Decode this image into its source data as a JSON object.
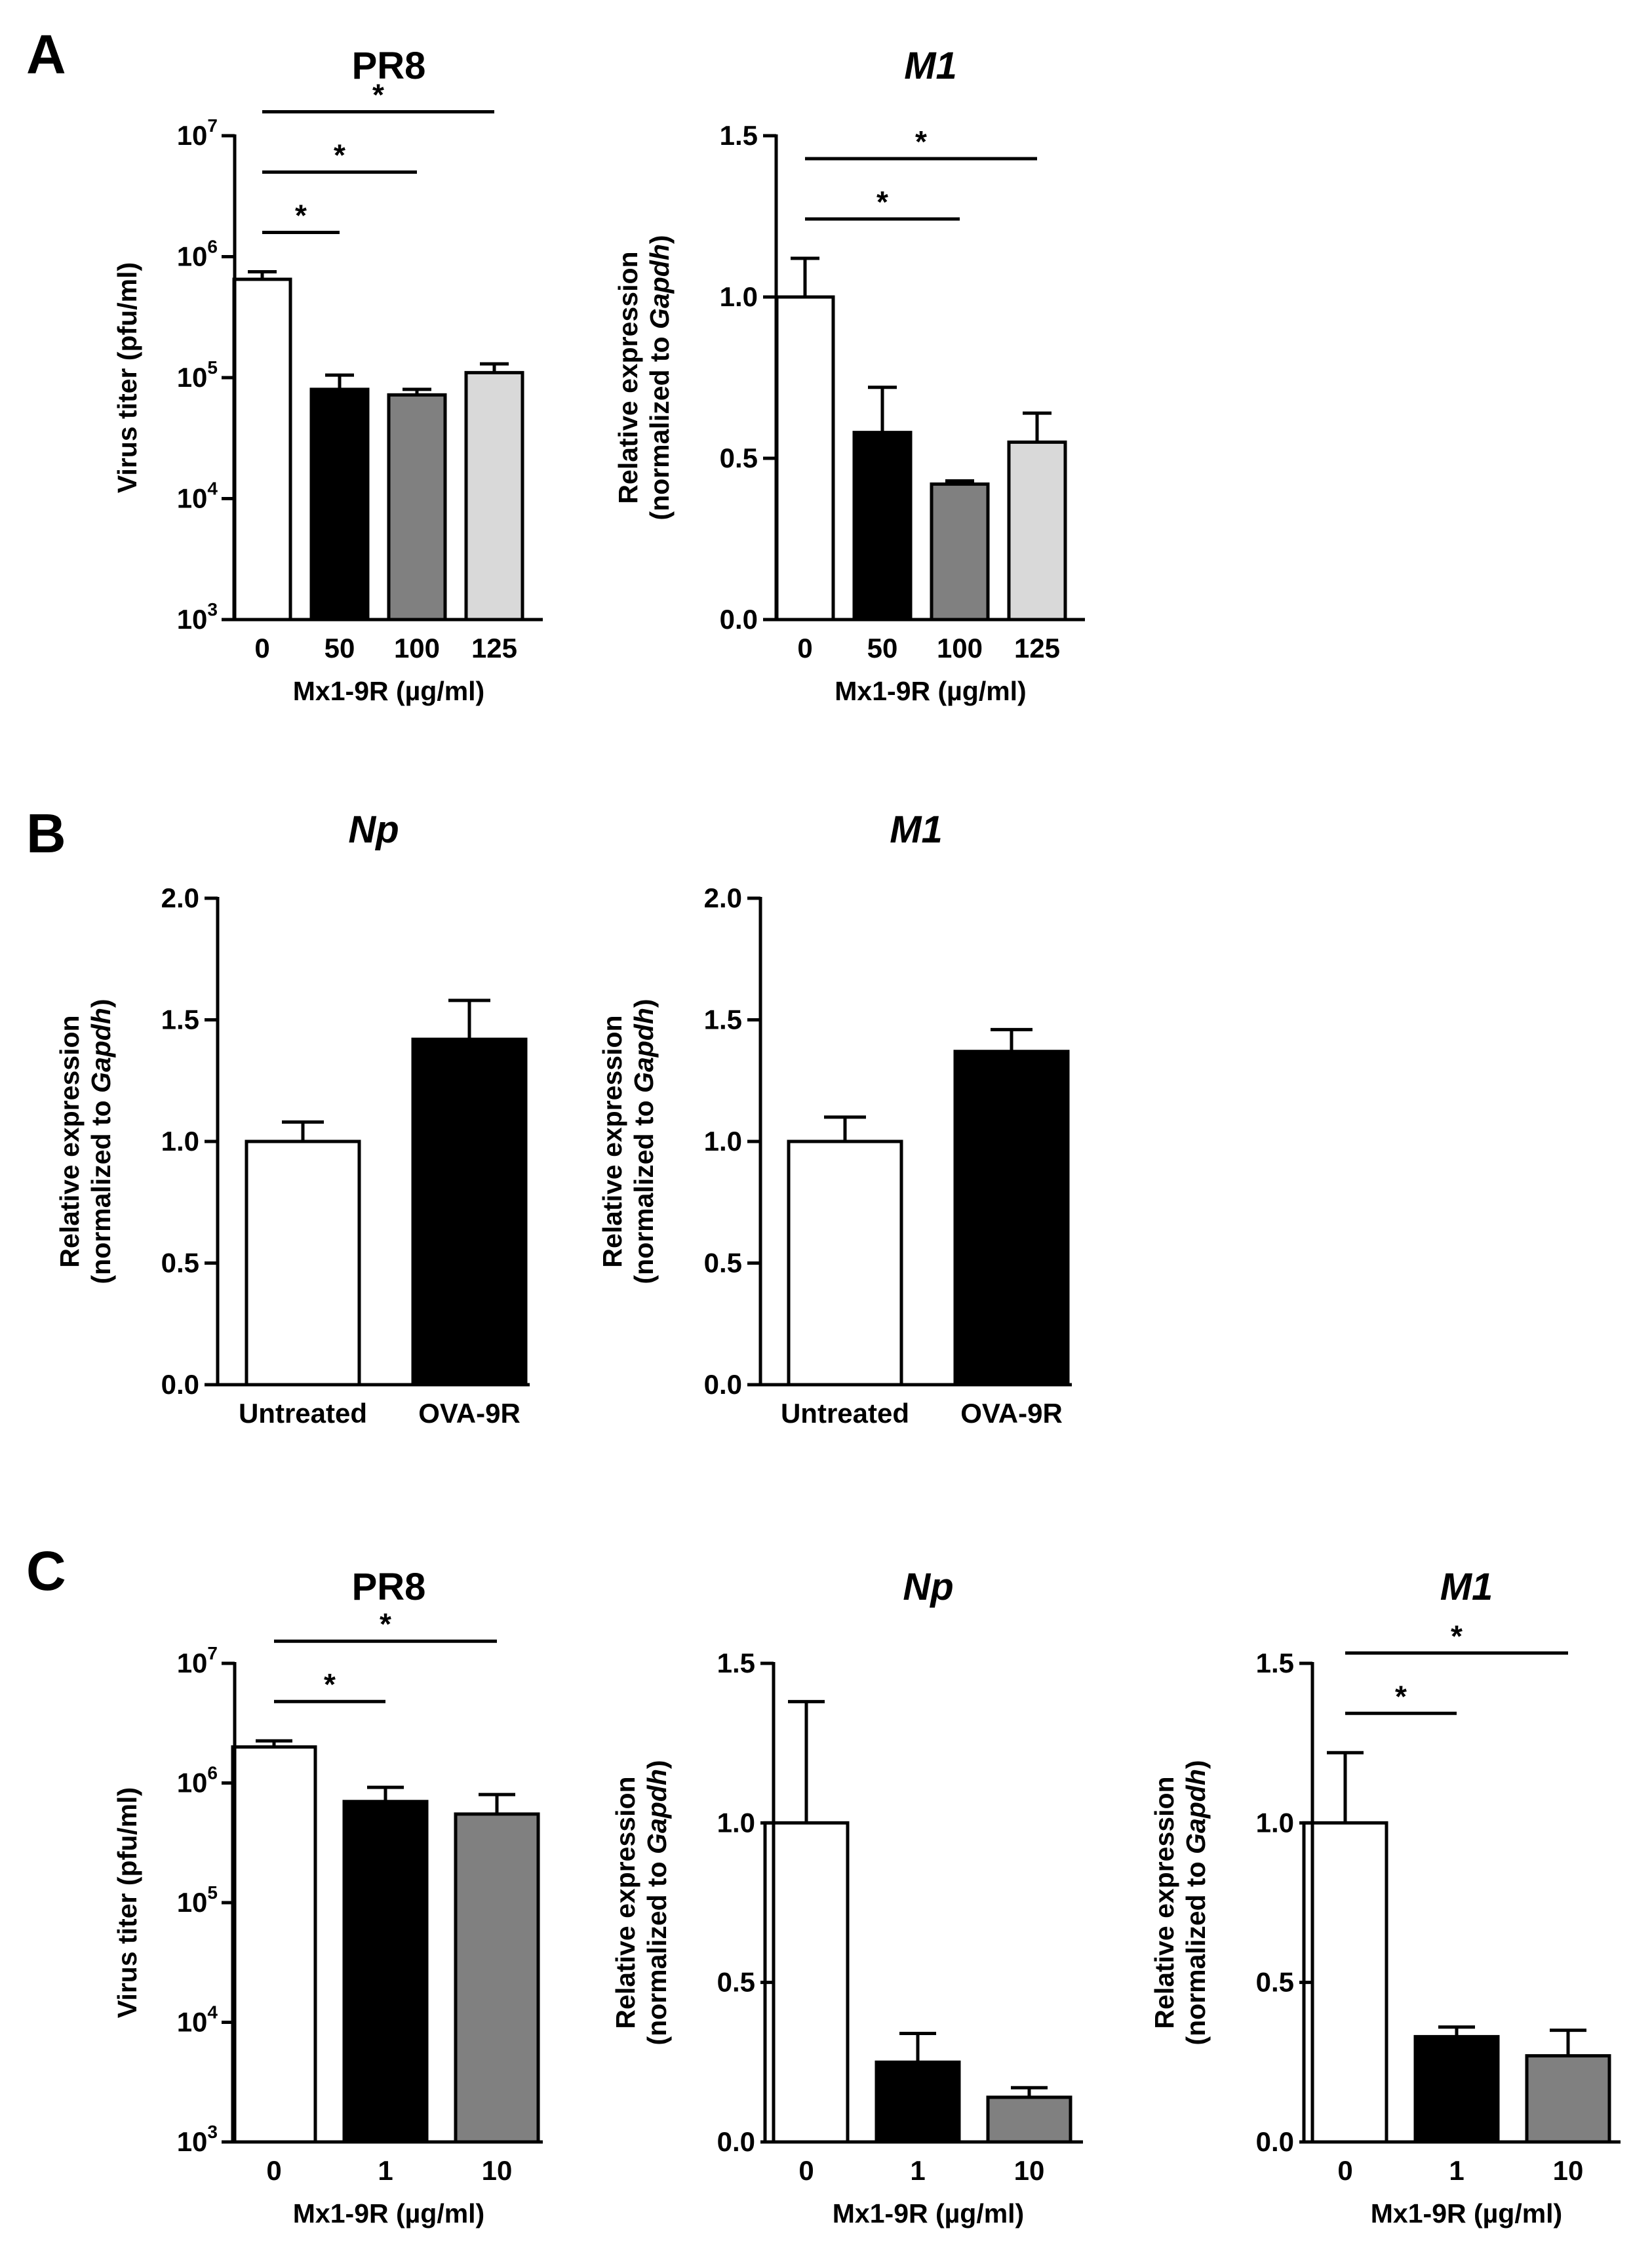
{
  "panels": [
    {
      "letter": "A"
    },
    {
      "letter": "B"
    },
    {
      "letter": "C"
    }
  ],
  "chart_data": [
    {
      "id": "A1",
      "panel": "A",
      "type": "bar",
      "scale": "log",
      "title": "PR8",
      "title_italic": false,
      "categories": [
        "0",
        "50",
        "100",
        "125"
      ],
      "values": [
        650000,
        80000,
        72000,
        110000
      ],
      "errors_upper": [
        750000,
        105000,
        80000,
        130000
      ],
      "bar_colors": [
        "#ffffff",
        "#000000",
        "#808080",
        "#d9d9d9"
      ],
      "xlabel": "Mx1-9R (µg/ml)",
      "ylabel_lines": [
        [
          {
            "t": "Virus titer (pfu/ml)",
            "i": false
          }
        ]
      ],
      "ylim": [
        1000,
        10000000
      ],
      "yticks": [
        {
          "v": 1000,
          "base": "10",
          "exp": "3"
        },
        {
          "v": 10000,
          "base": "10",
          "exp": "4"
        },
        {
          "v": 100000,
          "base": "10",
          "exp": "5"
        },
        {
          "v": 1000000,
          "base": "10",
          "exp": "6"
        },
        {
          "v": 10000000,
          "base": "10",
          "exp": "7"
        }
      ],
      "significance": [
        {
          "from": 0,
          "to": 1,
          "label": "*"
        },
        {
          "from": 0,
          "to": 2,
          "label": "*"
        },
        {
          "from": 0,
          "to": 3,
          "label": "*"
        }
      ]
    },
    {
      "id": "A2",
      "panel": "A",
      "type": "bar",
      "scale": "linear",
      "title": "M1",
      "title_italic": true,
      "categories": [
        "0",
        "50",
        "100",
        "125"
      ],
      "values": [
        1.0,
        0.58,
        0.42,
        0.55
      ],
      "errors_upper": [
        1.12,
        0.72,
        0.43,
        0.64
      ],
      "bar_colors": [
        "#ffffff",
        "#000000",
        "#808080",
        "#d9d9d9"
      ],
      "xlabel": "Mx1-9R (µg/ml)",
      "ylabel_lines": [
        [
          {
            "t": "Relative expression",
            "i": false
          }
        ],
        [
          {
            "t": "(normalized to ",
            "i": false
          },
          {
            "t": "Gapdh",
            "i": true
          },
          {
            "t": ")",
            "i": false
          }
        ]
      ],
      "ylim": [
        0,
        1.5
      ],
      "yticks": [
        {
          "v": 0,
          "label": "0.0"
        },
        {
          "v": 0.5,
          "label": "0.5"
        },
        {
          "v": 1.0,
          "label": "1.0"
        },
        {
          "v": 1.5,
          "label": "1.5"
        }
      ],
      "significance": [
        {
          "from": 0,
          "to": 2,
          "label": "*"
        },
        {
          "from": 0,
          "to": 3,
          "label": "*"
        }
      ]
    },
    {
      "id": "B1",
      "panel": "B",
      "type": "bar",
      "scale": "linear",
      "title": "Np",
      "title_italic": true,
      "categories": [
        "Untreated",
        "OVA-9R"
      ],
      "values": [
        1.0,
        1.42
      ],
      "errors_upper": [
        1.08,
        1.58
      ],
      "bar_colors": [
        "#ffffff",
        "#000000"
      ],
      "xlabel": "",
      "ylabel_lines": [
        [
          {
            "t": "Relative expression",
            "i": false
          }
        ],
        [
          {
            "t": "(normalized to ",
            "i": false
          },
          {
            "t": "Gapdh",
            "i": true
          },
          {
            "t": ")",
            "i": false
          }
        ]
      ],
      "ylim": [
        0,
        2.0
      ],
      "yticks": [
        {
          "v": 0,
          "label": "0.0"
        },
        {
          "v": 0.5,
          "label": "0.5"
        },
        {
          "v": 1.0,
          "label": "1.0"
        },
        {
          "v": 1.5,
          "label": "1.5"
        },
        {
          "v": 2.0,
          "label": "2.0"
        }
      ],
      "significance": []
    },
    {
      "id": "B2",
      "panel": "B",
      "type": "bar",
      "scale": "linear",
      "title": "M1",
      "title_italic": true,
      "categories": [
        "Untreated",
        "OVA-9R"
      ],
      "values": [
        1.0,
        1.37
      ],
      "errors_upper": [
        1.1,
        1.46
      ],
      "bar_colors": [
        "#ffffff",
        "#000000"
      ],
      "xlabel": "",
      "ylabel_lines": [
        [
          {
            "t": "Relative expression",
            "i": false
          }
        ],
        [
          {
            "t": "(normalized to ",
            "i": false
          },
          {
            "t": "Gapdh",
            "i": true
          },
          {
            "t": ")",
            "i": false
          }
        ]
      ],
      "ylim": [
        0,
        2.0
      ],
      "yticks": [
        {
          "v": 0,
          "label": "0.0"
        },
        {
          "v": 0.5,
          "label": "0.5"
        },
        {
          "v": 1.0,
          "label": "1.0"
        },
        {
          "v": 1.5,
          "label": "1.5"
        },
        {
          "v": 2.0,
          "label": "2.0"
        }
      ],
      "significance": []
    },
    {
      "id": "C1",
      "panel": "C",
      "type": "bar",
      "scale": "log",
      "title": "PR8",
      "title_italic": false,
      "categories": [
        "0",
        "1",
        "10"
      ],
      "values": [
        2000000,
        700000,
        550000
      ],
      "errors_upper": [
        2250000,
        920000,
        800000
      ],
      "bar_colors": [
        "#ffffff",
        "#000000",
        "#808080"
      ],
      "xlabel": "Mx1-9R (µg/ml)",
      "ylabel_lines": [
        [
          {
            "t": "Virus titer (pfu/ml)",
            "i": false
          }
        ]
      ],
      "ylim": [
        1000,
        10000000
      ],
      "yticks": [
        {
          "v": 1000,
          "base": "10",
          "exp": "3"
        },
        {
          "v": 10000,
          "base": "10",
          "exp": "4"
        },
        {
          "v": 100000,
          "base": "10",
          "exp": "5"
        },
        {
          "v": 1000000,
          "base": "10",
          "exp": "6"
        },
        {
          "v": 10000000,
          "base": "10",
          "exp": "7"
        }
      ],
      "significance": [
        {
          "from": 0,
          "to": 1,
          "label": "*"
        },
        {
          "from": 0,
          "to": 2,
          "label": "*"
        }
      ]
    },
    {
      "id": "C2",
      "panel": "C",
      "type": "bar",
      "scale": "linear",
      "title": "Np",
      "title_italic": true,
      "categories": [
        "0",
        "1",
        "10"
      ],
      "values": [
        1.0,
        0.25,
        0.14
      ],
      "errors_upper": [
        1.38,
        0.34,
        0.17
      ],
      "bar_colors": [
        "#ffffff",
        "#000000",
        "#808080"
      ],
      "xlabel": "Mx1-9R (µg/ml)",
      "ylabel_lines": [
        [
          {
            "t": "Relative expression",
            "i": false
          }
        ],
        [
          {
            "t": "(normalized to ",
            "i": false
          },
          {
            "t": "Gapdh",
            "i": true
          },
          {
            "t": ")",
            "i": false
          }
        ]
      ],
      "ylim": [
        0,
        1.5
      ],
      "yticks": [
        {
          "v": 0,
          "label": "0.0"
        },
        {
          "v": 0.5,
          "label": "0.5"
        },
        {
          "v": 1.0,
          "label": "1.0"
        },
        {
          "v": 1.5,
          "label": "1.5"
        }
      ],
      "significance": []
    },
    {
      "id": "C3",
      "panel": "C",
      "type": "bar",
      "scale": "linear",
      "title": "M1",
      "title_italic": true,
      "categories": [
        "0",
        "1",
        "10"
      ],
      "values": [
        1.0,
        0.33,
        0.27
      ],
      "errors_upper": [
        1.22,
        0.36,
        0.35
      ],
      "bar_colors": [
        "#ffffff",
        "#000000",
        "#808080"
      ],
      "xlabel": "Mx1-9R (µg/ml)",
      "ylabel_lines": [
        [
          {
            "t": "Relative expression",
            "i": false
          }
        ],
        [
          {
            "t": "(normalized to ",
            "i": false
          },
          {
            "t": "Gapdh",
            "i": true
          },
          {
            "t": ")",
            "i": false
          }
        ]
      ],
      "ylim": [
        0,
        1.5
      ],
      "yticks": [
        {
          "v": 0,
          "label": "0.0"
        },
        {
          "v": 0.5,
          "label": "0.5"
        },
        {
          "v": 1.0,
          "label": "1.0"
        },
        {
          "v": 1.5,
          "label": "1.5"
        }
      ],
      "significance": [
        {
          "from": 0,
          "to": 1,
          "label": "*"
        },
        {
          "from": 0,
          "to": 2,
          "label": "*"
        }
      ]
    }
  ]
}
